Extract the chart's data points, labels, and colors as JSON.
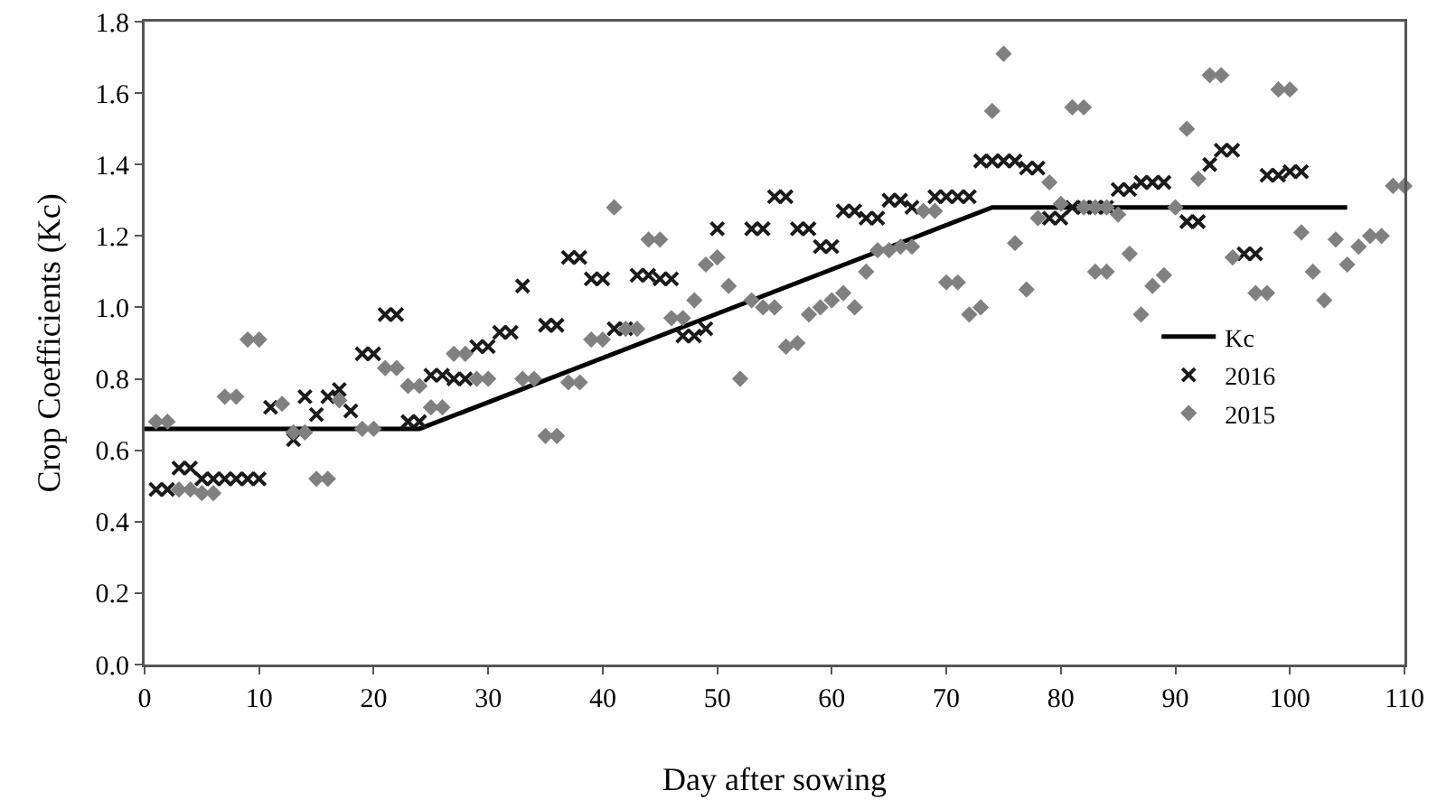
{
  "chart_data": {
    "type": "scatter",
    "xlabel": "Day after sowing",
    "ylabel": "Crop Coefficients (Kc)",
    "xlim": [
      0,
      110
    ],
    "xticks": [
      0,
      10,
      20,
      30,
      40,
      50,
      60,
      70,
      80,
      90,
      100,
      110
    ],
    "ylim": [
      0,
      1.8
    ],
    "yticks": [
      {
        "value": 0,
        "label": "0.0"
      },
      {
        "value": 0.2,
        "label": "0.2"
      },
      {
        "value": 0.4,
        "label": "0.4"
      },
      {
        "value": 0.6,
        "label": "0.6"
      },
      {
        "value": 0.8,
        "label": "0.8"
      },
      {
        "value": 1,
        "label": "1.0"
      },
      {
        "value": 1.2,
        "label": "1.2"
      },
      {
        "value": 1.4,
        "label": "1.4"
      },
      {
        "value": 1.6,
        "label": "1.6"
      },
      {
        "value": 1.8,
        "label": "1.8"
      }
    ],
    "grid": false,
    "legend": "right",
    "series": [
      {
        "name": "Kc",
        "type": "line",
        "color": "#000000",
        "marker": "none",
        "line_style": "solid",
        "x": [
          0,
          24,
          74,
          105
        ],
        "values": [
          0.66,
          0.66,
          1.28,
          1.28
        ]
      },
      {
        "name": "2016",
        "color": "#1a1a1a",
        "marker": "cross",
        "x": [
          1,
          2,
          3,
          4,
          5,
          6,
          7,
          8,
          9,
          10,
          11,
          13,
          14,
          15,
          16,
          17,
          18,
          19,
          20,
          21,
          22,
          23,
          24,
          25,
          26,
          27,
          28,
          29,
          30,
          31,
          32,
          33,
          35,
          36,
          37,
          38,
          39,
          40,
          41,
          42,
          43,
          44,
          45,
          46,
          47,
          48,
          49,
          50,
          53,
          54,
          55,
          56,
          57,
          58,
          59,
          60,
          61,
          62,
          63,
          64,
          65,
          66,
          67,
          69,
          70,
          71,
          72,
          73,
          74,
          75,
          76,
          77,
          78,
          79,
          80,
          81,
          82,
          83,
          84,
          85,
          86,
          87,
          88,
          89,
          91,
          92,
          93,
          94,
          95,
          96,
          97,
          98,
          99,
          100,
          101
        ],
        "values": [
          0.49,
          0.49,
          0.55,
          0.55,
          0.52,
          0.52,
          0.52,
          0.52,
          0.52,
          0.52,
          0.72,
          0.63,
          0.75,
          0.7,
          0.75,
          0.77,
          0.71,
          0.87,
          0.87,
          0.98,
          0.98,
          0.68,
          0.68,
          0.81,
          0.81,
          0.8,
          0.8,
          0.89,
          0.89,
          0.93,
          0.93,
          1.06,
          0.95,
          0.95,
          1.14,
          1.14,
          1.08,
          1.08,
          0.94,
          0.94,
          1.09,
          1.09,
          1.08,
          1.08,
          0.92,
          0.92,
          0.94,
          1.22,
          1.22,
          1.22,
          1.31,
          1.31,
          1.22,
          1.22,
          1.17,
          1.17,
          1.27,
          1.27,
          1.25,
          1.25,
          1.3,
          1.3,
          1.28,
          1.31,
          1.31,
          1.31,
          1.31,
          1.41,
          1.41,
          1.41,
          1.41,
          1.39,
          1.39,
          1.25,
          1.25,
          1.28,
          1.28,
          1.28,
          1.28,
          1.33,
          1.33,
          1.35,
          1.35,
          1.35,
          1.24,
          1.24,
          1.4,
          1.44,
          1.44,
          1.15,
          1.15,
          1.37,
          1.37,
          1.38,
          1.38
        ]
      },
      {
        "name": "2015",
        "color": "#808080",
        "marker": "diamond",
        "x": [
          1,
          2,
          3,
          4,
          5,
          6,
          7,
          8,
          9,
          10,
          12,
          13,
          14,
          15,
          16,
          17,
          19,
          20,
          21,
          22,
          23,
          24,
          25,
          26,
          27,
          28,
          29,
          30,
          33,
          34,
          35,
          36,
          37,
          38,
          39,
          40,
          41,
          42,
          43,
          44,
          45,
          46,
          47,
          48,
          49,
          50,
          51,
          52,
          53,
          54,
          55,
          56,
          57,
          58,
          59,
          60,
          61,
          62,
          63,
          64,
          65,
          66,
          67,
          68,
          69,
          70,
          71,
          72,
          73,
          74,
          75,
          76,
          77,
          78,
          79,
          80,
          81,
          82,
          82,
          83,
          83,
          84,
          84,
          85,
          86,
          87,
          88,
          89,
          90,
          91,
          92,
          93,
          94,
          95,
          97,
          98,
          99,
          100,
          101,
          102,
          103,
          104,
          105,
          106,
          107,
          108,
          109,
          110
        ],
        "values": [
          0.68,
          0.68,
          0.49,
          0.49,
          0.48,
          0.48,
          0.75,
          0.75,
          0.91,
          0.91,
          0.73,
          0.65,
          0.65,
          0.52,
          0.52,
          0.74,
          0.66,
          0.66,
          0.83,
          0.83,
          0.78,
          0.78,
          0.72,
          0.72,
          0.87,
          0.87,
          0.8,
          0.8,
          0.8,
          0.8,
          0.64,
          0.64,
          0.79,
          0.79,
          0.91,
          0.91,
          1.28,
          0.94,
          0.94,
          1.19,
          1.19,
          0.97,
          0.97,
          1.02,
          1.12,
          1.14,
          1.06,
          0.8,
          1.02,
          1.0,
          1.0,
          0.89,
          0.9,
          0.98,
          1.0,
          1.02,
          1.04,
          1.0,
          1.1,
          1.16,
          1.16,
          1.17,
          1.17,
          1.27,
          1.27,
          1.07,
          1.07,
          0.98,
          1.0,
          1.55,
          1.71,
          1.18,
          1.05,
          1.25,
          1.35,
          1.29,
          1.56,
          1.56,
          1.28,
          1.28,
          1.1,
          1.28,
          1.1,
          1.26,
          1.15,
          0.98,
          1.06,
          1.09,
          1.28,
          1.5,
          1.36,
          1.65,
          1.65,
          1.14,
          1.04,
          1.04,
          1.61,
          1.61,
          1.21,
          1.1,
          1.02,
          1.19,
          1.12,
          1.17,
          1.2,
          1.2,
          1.34,
          1.34
        ]
      }
    ]
  }
}
